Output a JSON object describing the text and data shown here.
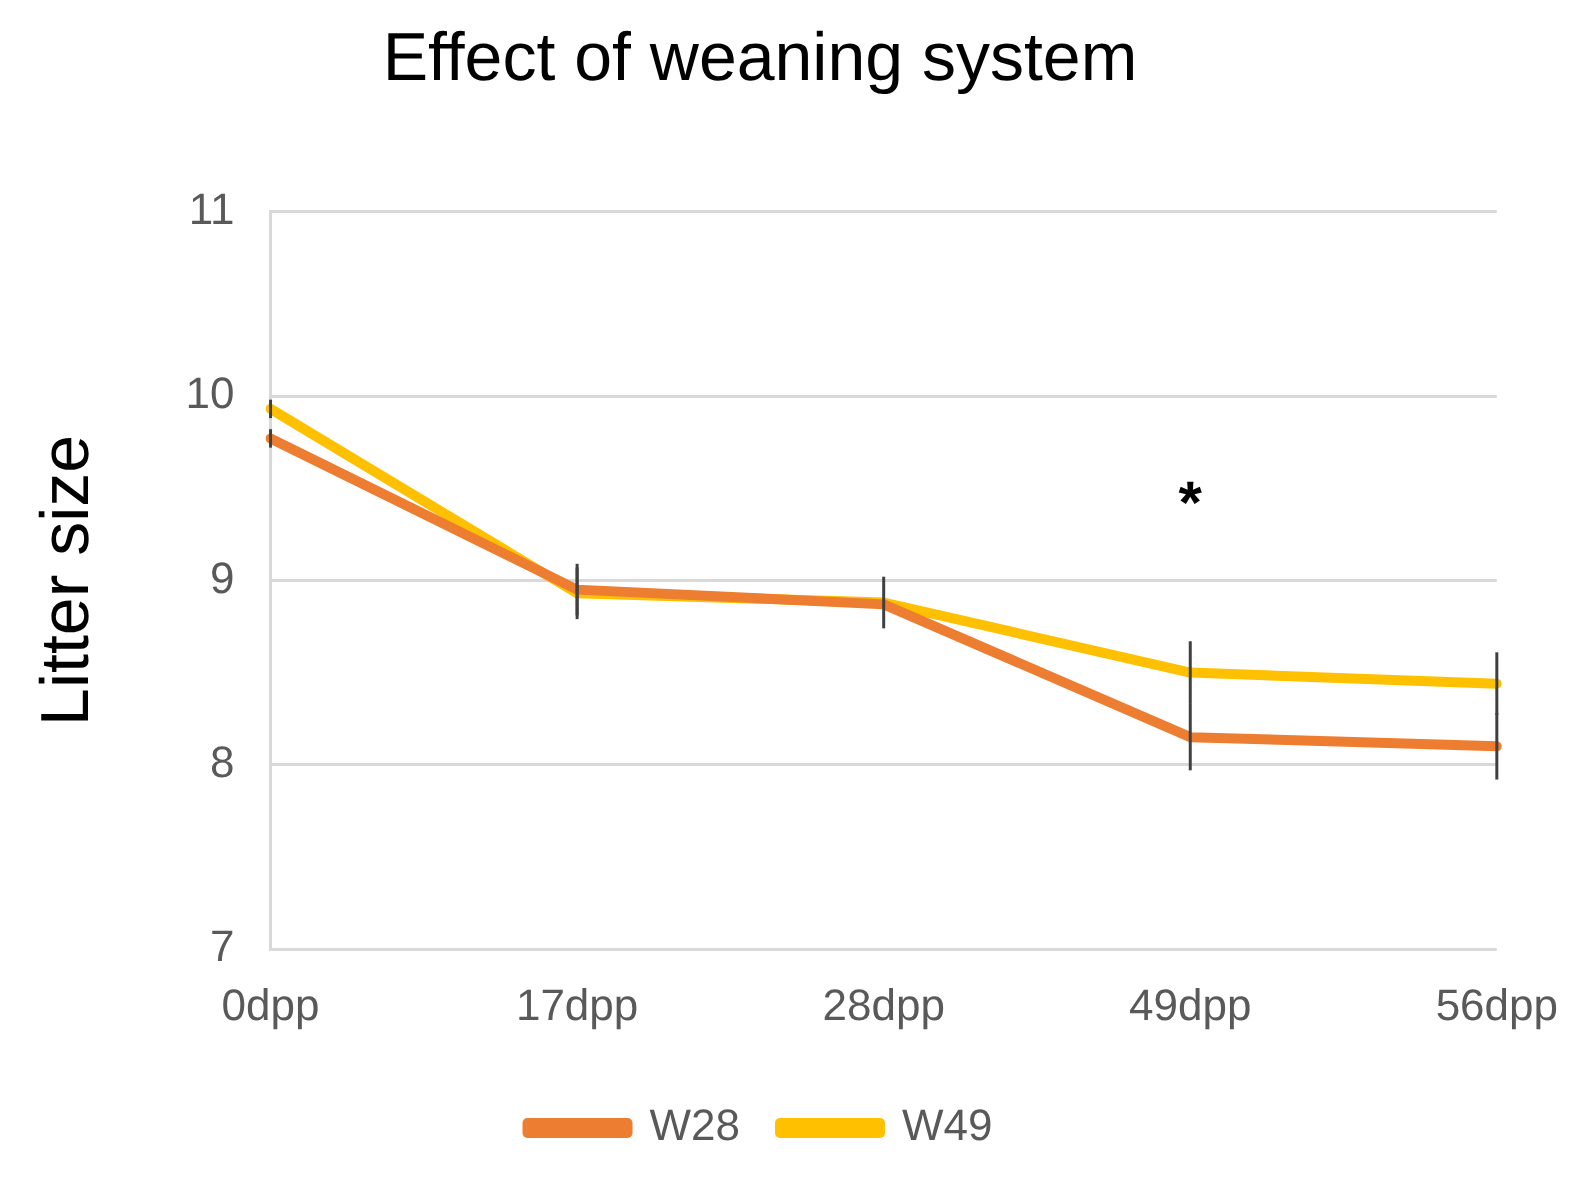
{
  "chart_data": {
    "type": "line",
    "title": "Effect of weaning system",
    "ylabel": "Litter size",
    "categories": [
      "0dpp",
      "17dpp",
      "28dpp",
      "49dpp",
      "56dpp"
    ],
    "series": [
      {
        "name": "W28",
        "color": "#ed7d31",
        "values": [
          9.77,
          8.95,
          8.87,
          8.15,
          8.1
        ],
        "errors": [
          0.05,
          0.14,
          null,
          0.18,
          0.18
        ]
      },
      {
        "name": "W49",
        "color": "#ffc000",
        "values": [
          9.93,
          8.93,
          8.88,
          8.5,
          8.44
        ],
        "errors": [
          0.05,
          0.14,
          0.14,
          0.17,
          0.17
        ]
      }
    ],
    "ylim": [
      7,
      11
    ],
    "yticks": [
      7,
      8,
      9,
      10,
      11
    ],
    "grid": "y",
    "legend": "bottom",
    "marker": "none",
    "line_style": "solid",
    "annotations": [
      "*"
    ]
  }
}
